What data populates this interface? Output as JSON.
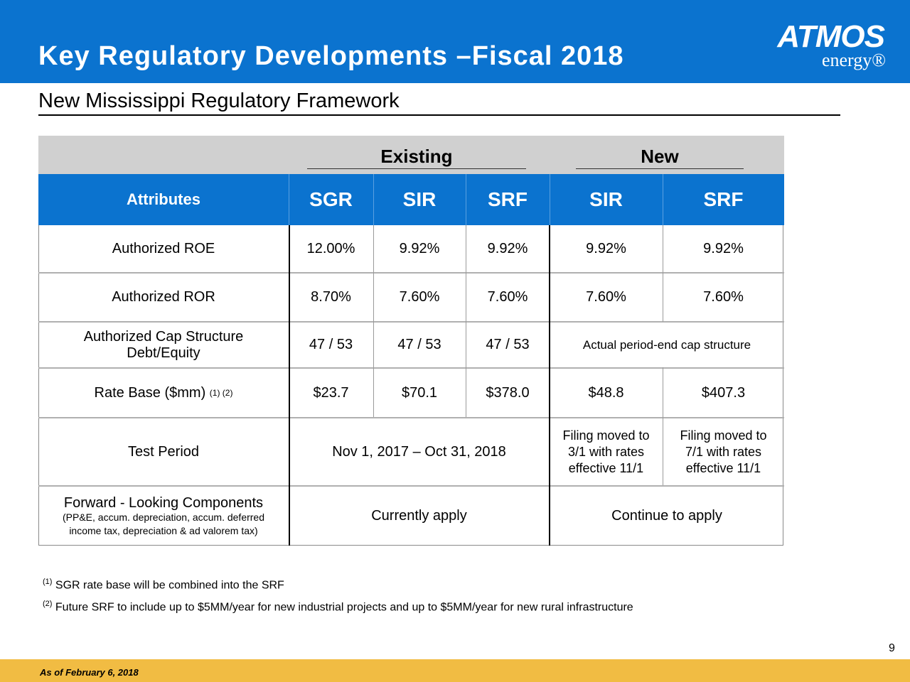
{
  "header": {
    "title": "Key Regulatory Developments –Fiscal 2018",
    "logo_main": "ATMOS",
    "logo_sub": "energy®"
  },
  "subtitle": "New Mississippi Regulatory Framework",
  "table": {
    "group_existing": "Existing",
    "group_new": "New",
    "columns": [
      "Attributes",
      "SGR",
      "SIR",
      "SRF",
      "SIR",
      "SRF"
    ],
    "rows": {
      "roe": {
        "label": "Authorized ROE",
        "values": [
          "12.00%",
          "9.92%",
          "9.92%",
          "9.92%",
          "9.92%"
        ]
      },
      "ror": {
        "label": "Authorized ROR",
        "values": [
          "8.70%",
          "7.60%",
          "7.60%",
          "7.60%",
          "7.60%"
        ]
      },
      "cap": {
        "label_line1": "Authorized Cap Structure",
        "label_line2": "Debt/Equity",
        "values": [
          "47 / 53",
          "47 / 53",
          "47 / 53"
        ],
        "new_value": "Actual period-end cap structure"
      },
      "ratebase": {
        "label": "Rate Base ($mm)",
        "label_sup": "(1) (2)",
        "values": [
          "$23.7",
          "$70.1",
          "$378.0",
          "$48.8",
          "$407.3"
        ]
      },
      "test": {
        "label": "Test Period",
        "existing": "Nov 1, 2017 – Oct 31, 2018",
        "new_sir": [
          "Filing moved to",
          "3/1 with rates",
          "effective 11/1"
        ],
        "new_srf": [
          "Filing moved to",
          "7/1 with rates",
          "effective 11/1"
        ]
      },
      "forward": {
        "label_line1": "Forward - Looking Components",
        "label_line2": "(PP&E, accum. depreciation, accum. deferred",
        "label_line3": "income tax, depreciation & ad valorem tax)",
        "existing": "Currently apply",
        "new": "Continue to apply"
      }
    }
  },
  "footnotes": [
    {
      "mark": "(1)",
      "text": " SGR rate base will be combined into the SRF"
    },
    {
      "mark": "(2)",
      "text": " Future SRF to include up to $5MM/year for new industrial projects and up to $5MM/year for new rural infrastructure"
    }
  ],
  "page_number": "9",
  "as_of": "As of February 6, 2018"
}
